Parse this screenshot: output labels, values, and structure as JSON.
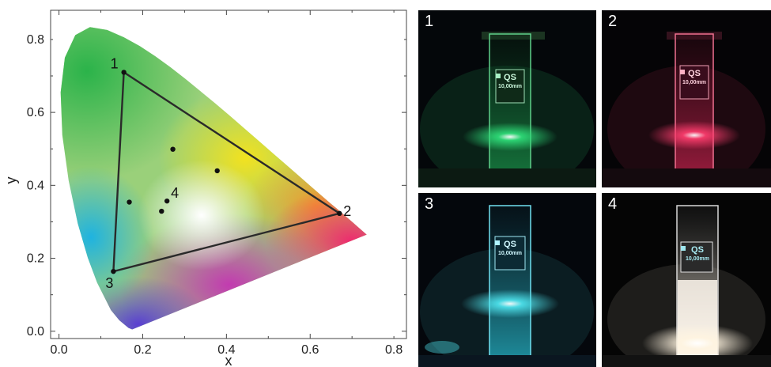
{
  "chart_data": {
    "type": "scatter",
    "title": "",
    "xlabel": "x",
    "ylabel": "y",
    "xlim": [
      -0.02,
      0.83
    ],
    "ylim": [
      -0.02,
      0.88
    ],
    "xticks": [
      "0.0",
      "0.2",
      "0.4",
      "0.6",
      "0.8"
    ],
    "yticks": [
      "0.0",
      "0.2",
      "0.4",
      "0.6",
      "0.8"
    ],
    "gamut_triangle": [
      {
        "label": "1",
        "x": 0.155,
        "y": 0.71
      },
      {
        "label": "2",
        "x": 0.67,
        "y": 0.323
      },
      {
        "label": "3",
        "x": 0.13,
        "y": 0.164
      }
    ],
    "points": [
      {
        "x": 0.272,
        "y": 0.499
      },
      {
        "x": 0.378,
        "y": 0.44
      },
      {
        "x": 0.168,
        "y": 0.354
      },
      {
        "x": 0.258,
        "y": 0.357,
        "label": "4"
      },
      {
        "x": 0.245,
        "y": 0.329
      }
    ],
    "background": "CIE 1931 chromaticity diagram"
  },
  "photos": [
    {
      "label": "1",
      "glow_color": "#2fe07a",
      "cuvette_text": "QS",
      "cuvette_subtext": "10,00mm"
    },
    {
      "label": "2",
      "glow_color": "#ff3d6e",
      "cuvette_text": "QS",
      "cuvette_subtext": "10,00mm"
    },
    {
      "label": "3",
      "glow_color": "#4fe6f0",
      "cuvette_text": "QS",
      "cuvette_subtext": "10,00mm"
    },
    {
      "label": "4",
      "glow_color": "#fff4e0",
      "cuvette_text": "QS",
      "cuvette_subtext": "10,00mm"
    }
  ]
}
